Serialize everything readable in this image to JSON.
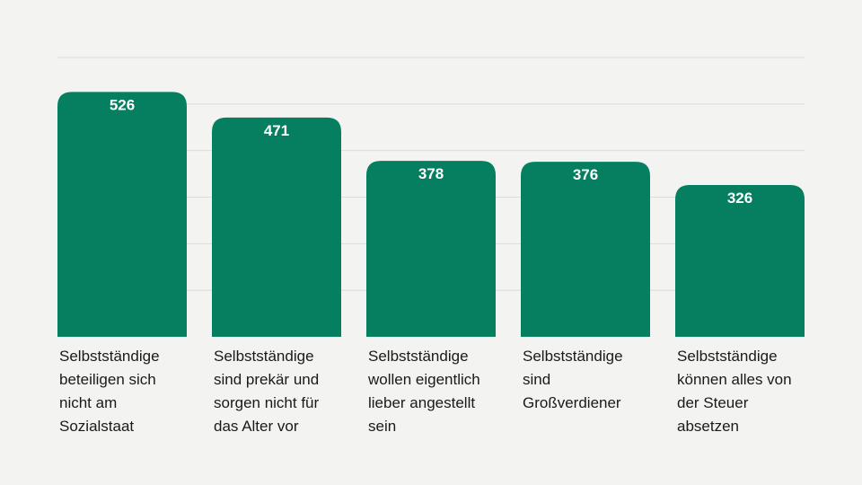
{
  "chart_data": {
    "type": "bar",
    "categories": [
      "Selbstständige beteiligen sich nicht am Sozialstaat",
      "Selbstständige sind prekär und sorgen nicht für das Alter vor",
      "Selbstständige wollen eigentlich lieber angestellt sein",
      "Selbstständige sind Großverdiener",
      "Selbstständige können alles von der Steuer absetzen"
    ],
    "category_lines": [
      [
        "Selbstständige",
        "beteiligen sich",
        "nicht am",
        "Sozialstaat"
      ],
      [
        "Selbstständige",
        "sind prekär und",
        "sorgen nicht für",
        "das Alter vor"
      ],
      [
        "Selbstständige",
        "wollen eigentlich",
        "lieber angestellt",
        "sein"
      ],
      [
        "Selbstständige",
        "sind",
        "Großverdiener"
      ],
      [
        "Selbstständige",
        "können alles von",
        "der Steuer",
        "absetzen"
      ]
    ],
    "values": [
      526,
      471,
      378,
      376,
      326
    ],
    "data_labels": [
      "526",
      "471",
      "378",
      "376",
      "326"
    ],
    "ylim": [
      0,
      600
    ],
    "grid": true,
    "title": "",
    "xlabel": "",
    "ylabel": "",
    "bar_color": "#057f5f",
    "grid_color": "#dcdcd8",
    "label_color": "#ffffff",
    "text_color": "#1a1a1a"
  }
}
